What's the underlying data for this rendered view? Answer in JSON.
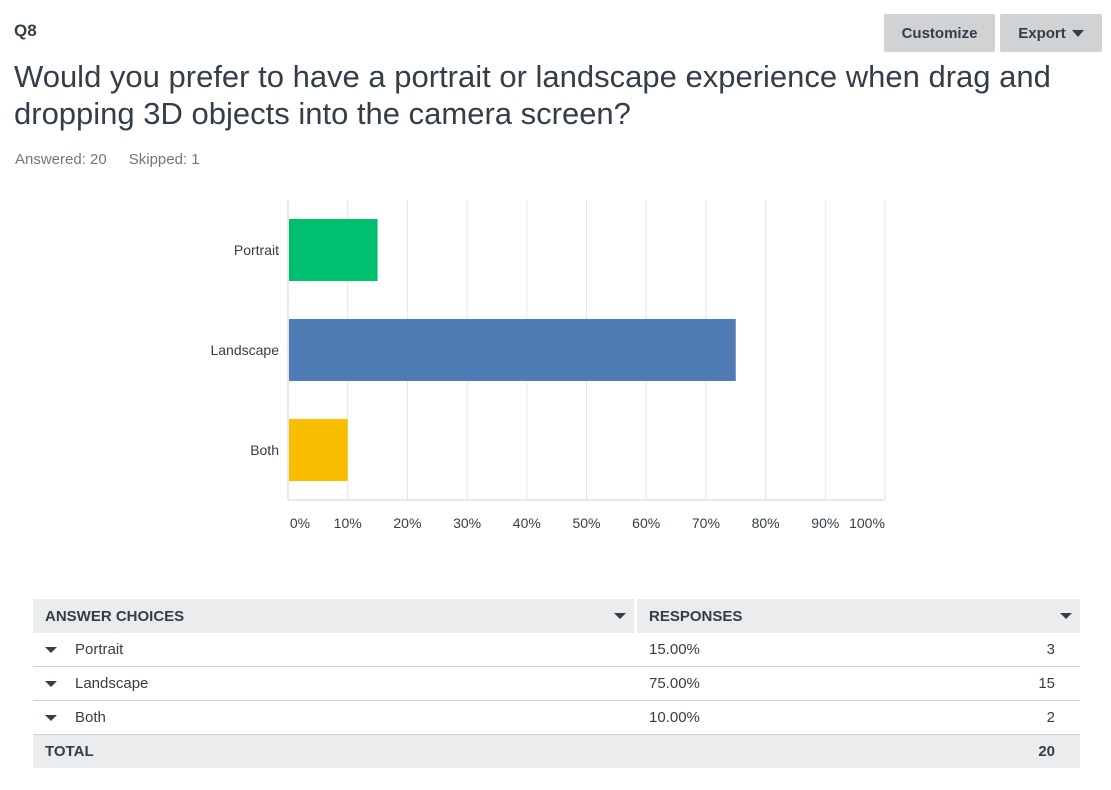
{
  "question": {
    "number": "Q8",
    "title": "Would you prefer to have a portrait or landscape experience when drag and dropping 3D objects into the camera screen?",
    "answered": "Answered: 20",
    "skipped": "Skipped: 1"
  },
  "toolbar": {
    "customize_label": "Customize",
    "export_label": "Export"
  },
  "chart_data": {
    "type": "bar",
    "orientation": "horizontal",
    "categories": [
      "Portrait",
      "Landscape",
      "Both"
    ],
    "values": [
      15,
      75,
      10
    ],
    "colors": [
      "#00bf6f",
      "#507cb6",
      "#f9be00"
    ],
    "xlim": [
      0,
      100
    ],
    "xticks": [
      "0%",
      "10%",
      "20%",
      "30%",
      "40%",
      "50%",
      "60%",
      "70%",
      "80%",
      "90%",
      "100%"
    ],
    "grid": true
  },
  "table": {
    "headers": {
      "answer": "ANSWER CHOICES",
      "responses": "RESPONSES"
    },
    "rows": [
      {
        "choice": "Portrait",
        "percent": "15.00%",
        "count": "3"
      },
      {
        "choice": "Landscape",
        "percent": "75.00%",
        "count": "15"
      },
      {
        "choice": "Both",
        "percent": "10.00%",
        "count": "2"
      }
    ],
    "total_label": "TOTAL",
    "total_count": "20"
  }
}
